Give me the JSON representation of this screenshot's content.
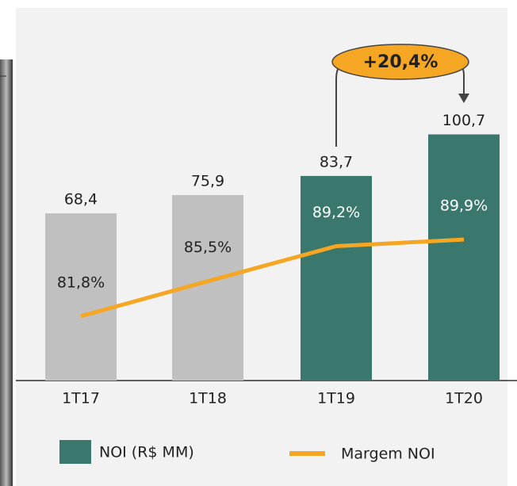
{
  "chart_data": {
    "type": "bar_line",
    "categories": [
      "1T17",
      "1T18",
      "1T19",
      "1T20"
    ],
    "series": [
      {
        "name": "NOI (R$ MM)",
        "type": "bar",
        "color": "#3a786d",
        "colors": [
          "#c0c0c0",
          "#c0c0c0",
          "#3a786d",
          "#3a786d"
        ],
        "values": [
          68.4,
          75.9,
          83.7,
          100.7
        ],
        "value_labels": [
          "68,4",
          "75,9",
          "83,7",
          "100,7"
        ]
      },
      {
        "name": "Margem NOI",
        "type": "line",
        "axis": "y2",
        "color": "#f5a623",
        "values": [
          81.8,
          85.5,
          89.2,
          89.9
        ],
        "value_labels": [
          "81,8%",
          "85,5%",
          "89,2%",
          "89,9%"
        ]
      }
    ],
    "ylim": [
      0,
      120
    ],
    "y2lim": [
      75,
      106
    ],
    "annotation": "+20,4%"
  }
}
